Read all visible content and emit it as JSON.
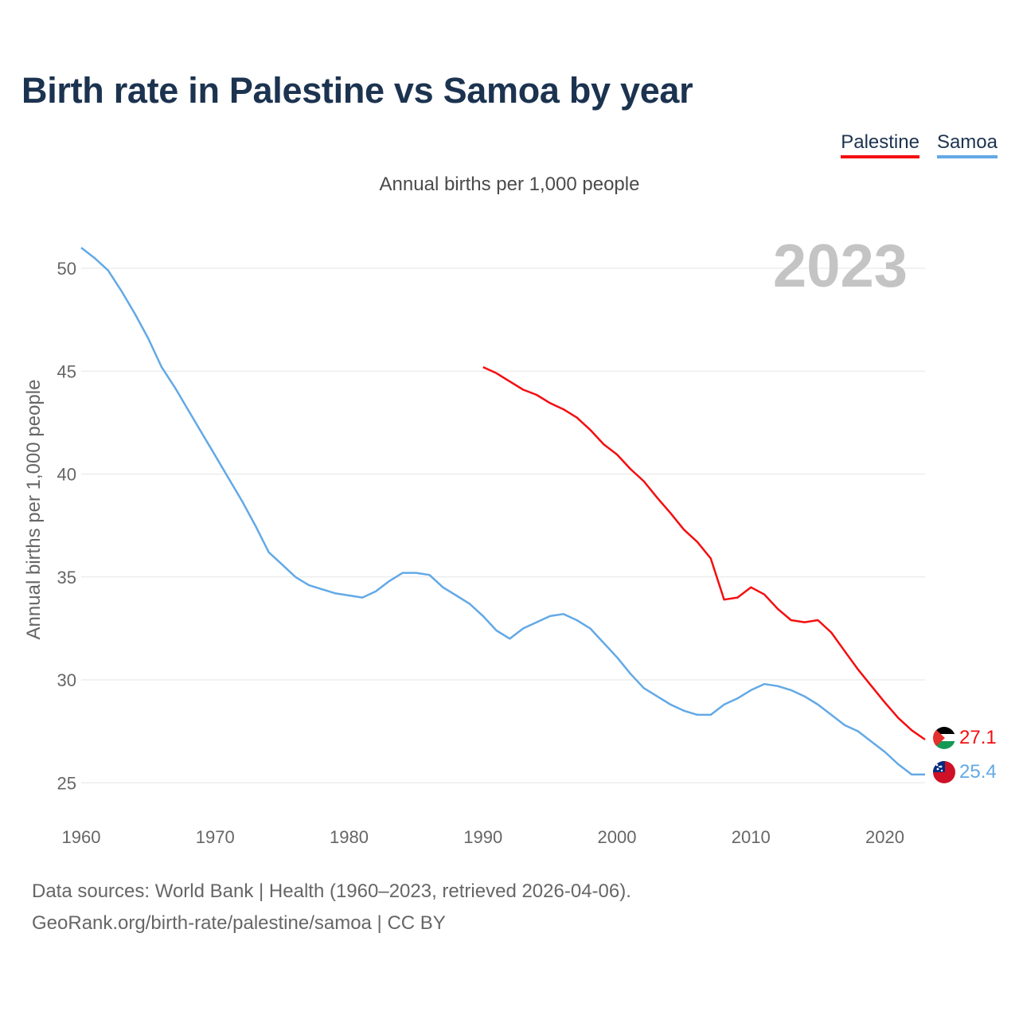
{
  "chart_data": {
    "type": "line",
    "title": "Birth rate in Palestine vs Samoa by year",
    "subtitle": "Annual births per 1,000 people",
    "ylabel": "Annual births per 1,000 people",
    "xlabel": "",
    "year_label": "2023",
    "xlim": [
      1960,
      2023
    ],
    "ylim": [
      24,
      51
    ],
    "x_ticks": [
      1960,
      1970,
      1980,
      1990,
      2000,
      2010,
      2020
    ],
    "y_ticks": [
      25,
      30,
      35,
      40,
      45,
      50
    ],
    "series": [
      {
        "name": "Palestine",
        "color": "#f40e10",
        "end_label": "27.1",
        "flag": "palestine-flag",
        "x": [
          1990,
          1991,
          1992,
          1993,
          1994,
          1995,
          1996,
          1997,
          1998,
          1999,
          2000,
          2001,
          2002,
          2003,
          2004,
          2005,
          2006,
          2007,
          2008,
          2009,
          2010,
          2011,
          2012,
          2013,
          2014,
          2015,
          2016,
          2017,
          2018,
          2019,
          2020,
          2021,
          2022,
          2023
        ],
        "values": [
          45.2,
          44.9,
          44.5,
          44.1,
          43.85,
          43.45,
          43.15,
          42.75,
          42.15,
          41.45,
          40.95,
          40.25,
          39.65,
          38.85,
          38.1,
          37.3,
          36.7,
          35.9,
          33.9,
          34.0,
          34.5,
          34.15,
          33.45,
          32.9,
          32.8,
          32.9,
          32.3,
          31.4,
          30.5,
          29.7,
          28.9,
          28.15,
          27.55,
          27.1
        ]
      },
      {
        "name": "Samoa",
        "color": "#63a9e6",
        "end_label": "25.4",
        "flag": "samoa-flag",
        "x": [
          1960,
          1961,
          1962,
          1963,
          1964,
          1965,
          1966,
          1967,
          1968,
          1969,
          1970,
          1971,
          1972,
          1973,
          1974,
          1975,
          1976,
          1977,
          1978,
          1979,
          1980,
          1981,
          1982,
          1983,
          1984,
          1985,
          1986,
          1987,
          1988,
          1989,
          1990,
          1991,
          1992,
          1993,
          1994,
          1995,
          1996,
          1997,
          1998,
          1999,
          2000,
          2001,
          2002,
          2003,
          2004,
          2005,
          2006,
          2007,
          2008,
          2009,
          2010,
          2011,
          2012,
          2013,
          2014,
          2015,
          2016,
          2017,
          2018,
          2019,
          2020,
          2021,
          2022,
          2023
        ],
        "values": [
          51.0,
          50.5,
          49.9,
          48.9,
          47.8,
          46.6,
          45.2,
          44.2,
          43.1,
          42.0,
          40.9,
          39.8,
          38.7,
          37.5,
          36.2,
          35.6,
          35.0,
          34.6,
          34.4,
          34.2,
          34.1,
          34.0,
          34.3,
          34.8,
          35.2,
          35.2,
          35.1,
          34.5,
          34.1,
          33.7,
          33.1,
          32.4,
          32.0,
          32.5,
          32.8,
          33.1,
          33.2,
          32.9,
          32.5,
          31.8,
          31.1,
          30.3,
          29.6,
          29.2,
          28.8,
          28.5,
          28.3,
          28.3,
          28.8,
          29.1,
          29.5,
          29.8,
          29.7,
          29.5,
          29.2,
          28.8,
          28.3,
          27.8,
          27.5,
          27.0,
          26.5,
          25.9,
          25.4,
          25.4
        ]
      }
    ]
  },
  "footer": {
    "line1": "Data sources: World Bank | Health (1960–2023, retrieved 2026-04-06).",
    "line2": "GeoRank.org/birth-rate/palestine/samoa | CC BY"
  }
}
